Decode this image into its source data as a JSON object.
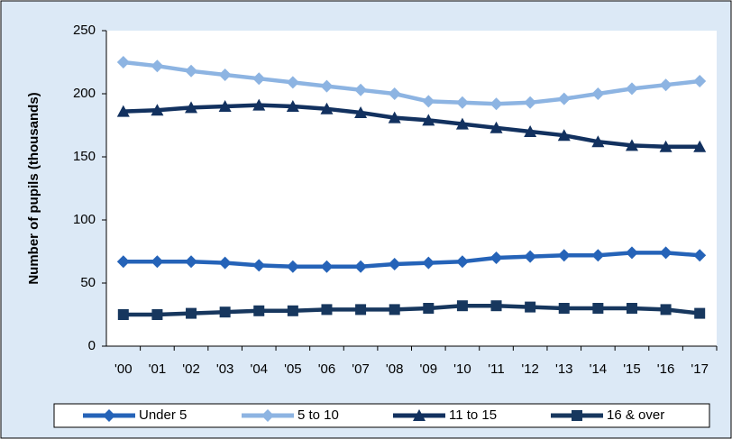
{
  "chart_data": {
    "type": "line",
    "y_label": "Number of pupils (thousands)",
    "categories": [
      "'00",
      "'01",
      "'02",
      "'03",
      "'04",
      "'05",
      "'06",
      "'07",
      "'08",
      "'09",
      "'10",
      "'11",
      "'12",
      "'13",
      "'14",
      "'15",
      "'16",
      "'17"
    ],
    "series": [
      {
        "name": "Under 5",
        "color": "#2563b8",
        "marker": "diamond",
        "values": [
          67,
          67,
          67,
          66,
          64,
          63,
          63,
          63,
          65,
          66,
          67,
          70,
          71,
          72,
          72,
          74,
          74,
          72
        ]
      },
      {
        "name": "5 to 10",
        "color": "#8db4e2",
        "marker": "diamond",
        "values": [
          225,
          222,
          218,
          215,
          212,
          209,
          206,
          203,
          200,
          194,
          193,
          192,
          193,
          196,
          200,
          204,
          207,
          210
        ]
      },
      {
        "name": "11 to 15",
        "color": "#12315f",
        "marker": "triangle",
        "values": [
          186,
          187,
          189,
          190,
          191,
          190,
          188,
          185,
          181,
          179,
          176,
          173,
          170,
          167,
          162,
          159,
          158,
          158
        ]
      },
      {
        "name": "16 & over",
        "color": "#17375e",
        "marker": "square",
        "values": [
          25,
          25,
          26,
          27,
          28,
          28,
          29,
          29,
          29,
          30,
          32,
          32,
          31,
          30,
          30,
          30,
          29,
          26
        ]
      }
    ],
    "ylim": [
      0,
      250
    ],
    "yticks": [
      0,
      50,
      100,
      150,
      200,
      250
    ],
    "grid": false,
    "legend": "bottom"
  }
}
